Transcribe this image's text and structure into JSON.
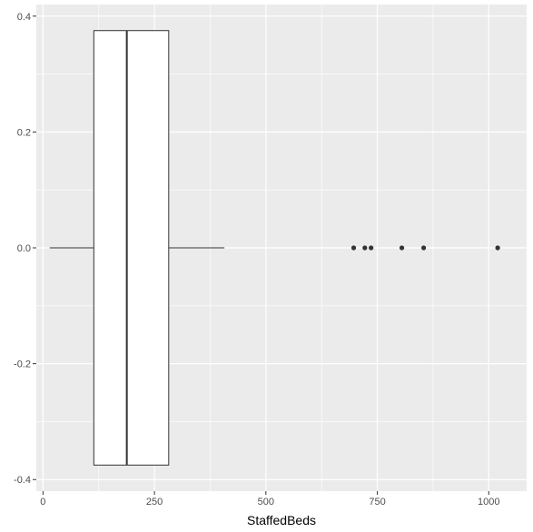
{
  "chart_data": {
    "type": "boxplot",
    "orientation": "horizontal",
    "xlabel": "StaffedBeds",
    "ylabel": "",
    "xlim": [
      -15,
      1085
    ],
    "ylim": [
      -0.42,
      0.42
    ],
    "x_ticks": [
      0,
      250,
      500,
      750,
      1000
    ],
    "y_ticks": [
      -0.4,
      -0.2,
      0.0,
      0.2,
      0.4
    ],
    "x_tick_labels": [
      "0",
      "250",
      "500",
      "750",
      "1000"
    ],
    "y_tick_labels": [
      "-0.4",
      "-0.2",
      "0.0",
      "0.2",
      "0.4"
    ],
    "box": {
      "whisker_low": 15,
      "q1": 114,
      "median": 188,
      "q3": 282,
      "whisker_high": 407,
      "y_center": 0.0,
      "half_height": 0.375
    },
    "outliers": [
      {
        "x": 697,
        "y": 0
      },
      {
        "x": 722,
        "y": 0
      },
      {
        "x": 736,
        "y": 0
      },
      {
        "x": 805,
        "y": 0
      },
      {
        "x": 854,
        "y": 0
      },
      {
        "x": 1020,
        "y": 0
      }
    ],
    "grid": true,
    "colors": {
      "panel": "#ebebeb",
      "grid_major": "#ffffff",
      "box_fill": "#ffffff",
      "line": "#333333",
      "point": "#333333"
    }
  }
}
